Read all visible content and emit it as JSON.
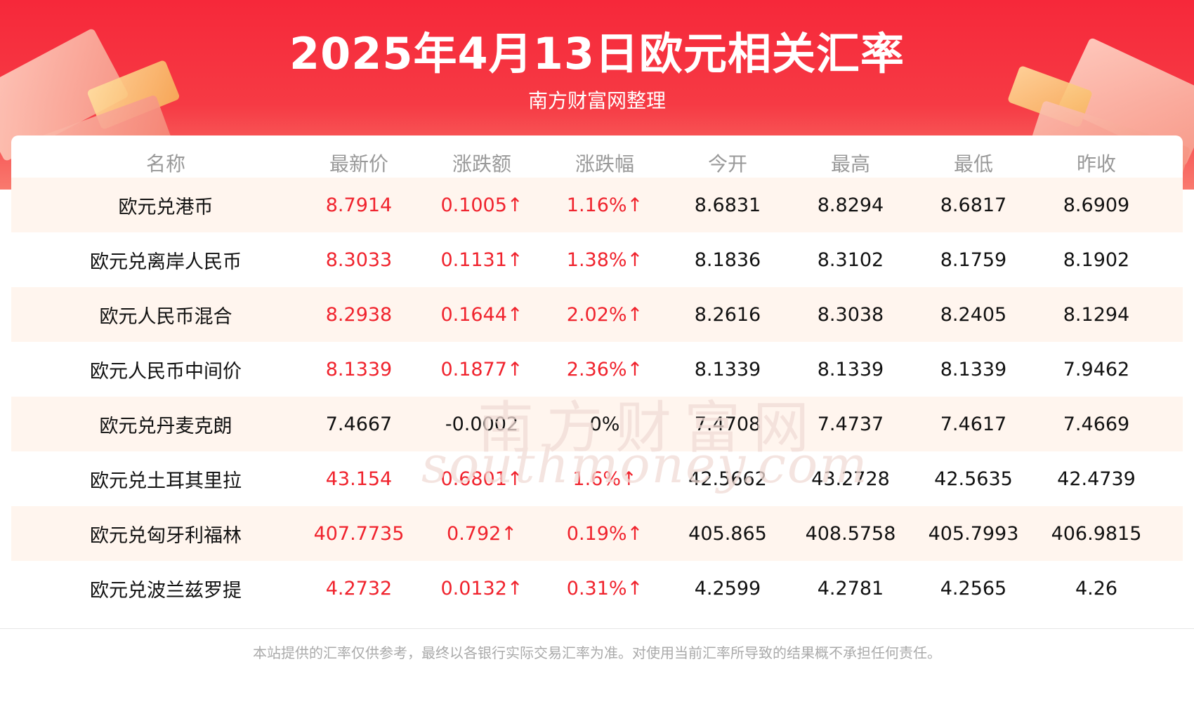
{
  "title": "2025年4月13日欧元相关汇率",
  "subtitle": "南方财富网整理",
  "table": {
    "headers": [
      "名称",
      "最新价",
      "涨跌额",
      "涨跌幅",
      "今开",
      "最高",
      "最低",
      "昨收"
    ],
    "rows": [
      [
        "欧元兑港币",
        "8.7914",
        "0.1005↑",
        "1.16%↑",
        "8.6831",
        "8.8294",
        "8.6817",
        "8.6909"
      ],
      [
        "欧元兑离岸人民币",
        "8.3033",
        "0.1131↑",
        "1.38%↑",
        "8.1836",
        "8.3102",
        "8.1759",
        "8.1902"
      ],
      [
        "欧元人民币混合",
        "8.2938",
        "0.1644↑",
        "2.02%↑",
        "8.2616",
        "8.3038",
        "8.2405",
        "8.1294"
      ],
      [
        "欧元人民币中间价",
        "8.1339",
        "0.1877↑",
        "2.36%↑",
        "8.1339",
        "8.1339",
        "8.1339",
        "7.9462"
      ],
      [
        "欧元兑丹麦克朗",
        "7.4667",
        "-0.0002",
        "0%",
        "7.4708",
        "7.4737",
        "7.4617",
        "7.4669"
      ],
      [
        "欧元兑土耳其里拉",
        "43.154",
        "0.6801↑",
        "1.6%↑",
        "42.5662",
        "43.2728",
        "42.5635",
        "42.4739"
      ],
      [
        "欧元兑匈牙利福林",
        "407.7735",
        "0.792↑",
        "0.19%↑",
        "405.865",
        "408.5758",
        "405.7993",
        "406.9815"
      ],
      [
        "欧元兑波兰兹罗提",
        "4.2732",
        "0.0132↑",
        "0.31%↑",
        "4.2599",
        "4.2781",
        "4.2565",
        "4.26"
      ]
    ],
    "rising": [
      true,
      true,
      true,
      true,
      false,
      true,
      true,
      true
    ]
  },
  "watermark": {
    "cn": "南方财富网",
    "en": "southmoney.com"
  },
  "disclaimer": "本站提供的汇率仅供参考，最终以各银行实际交易汇率为准。对使用当前汇率所导致的结果概不承担任何责任。",
  "colors": {
    "banner": "#f6283a",
    "up": "#f0232d",
    "row_alt": "#fff5ee",
    "header_text": "#999999"
  }
}
